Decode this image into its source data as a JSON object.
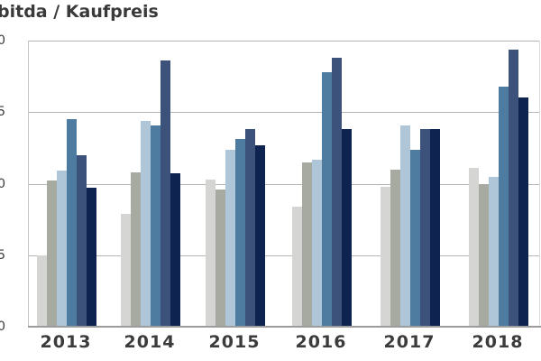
{
  "title": "bitda / Kaufpreis",
  "axes": {
    "x_labels": [
      "2013",
      "2014",
      "2015",
      "2016",
      "2017",
      "2018"
    ],
    "y_tick_values": [
      20,
      15,
      10,
      5,
      0
    ],
    "y_tick_labels_visible": [
      "0",
      "5",
      "0",
      "5",
      "0"
    ]
  },
  "palette": {
    "grid_color": "#b5b5b5",
    "baseline_color": "#9c9c9c",
    "text_color": "#3b3b3b",
    "background": "#ffffff"
  },
  "chart_data": {
    "type": "bar",
    "title": "bitda / Kaufpreis",
    "categories": [
      "2013",
      "2014",
      "2015",
      "2016",
      "2017",
      "2018"
    ],
    "series": [
      {
        "name": "light-gray",
        "color": "#d5d5d3",
        "values": [
          5.0,
          7.9,
          10.3,
          8.4,
          9.8,
          11.1
        ]
      },
      {
        "name": "gray",
        "color": "#a7aaa0",
        "values": [
          10.2,
          10.8,
          9.6,
          11.5,
          11.0,
          10.0
        ]
      },
      {
        "name": "light-blue",
        "color": "#aec6d8",
        "values": [
          10.9,
          14.4,
          12.4,
          11.7,
          14.1,
          10.5
        ]
      },
      {
        "name": "steel-blue",
        "color": "#4e7ca1",
        "values": [
          14.5,
          14.1,
          13.1,
          17.8,
          12.4,
          16.8
        ]
      },
      {
        "name": "slate-blue",
        "color": "#3c527a",
        "values": [
          12.0,
          18.6,
          13.8,
          18.8,
          13.8,
          19.4
        ]
      },
      {
        "name": "dark-navy",
        "color": "#0e2350",
        "values": [
          9.7,
          10.7,
          12.7,
          13.8,
          13.8,
          16.0
        ]
      }
    ],
    "xlabel": "",
    "ylabel": "",
    "ylim": [
      0,
      20
    ],
    "yticks": [
      0,
      5,
      10,
      15,
      20
    ],
    "grid": true,
    "legend_position": "none-visible (cropped)"
  }
}
